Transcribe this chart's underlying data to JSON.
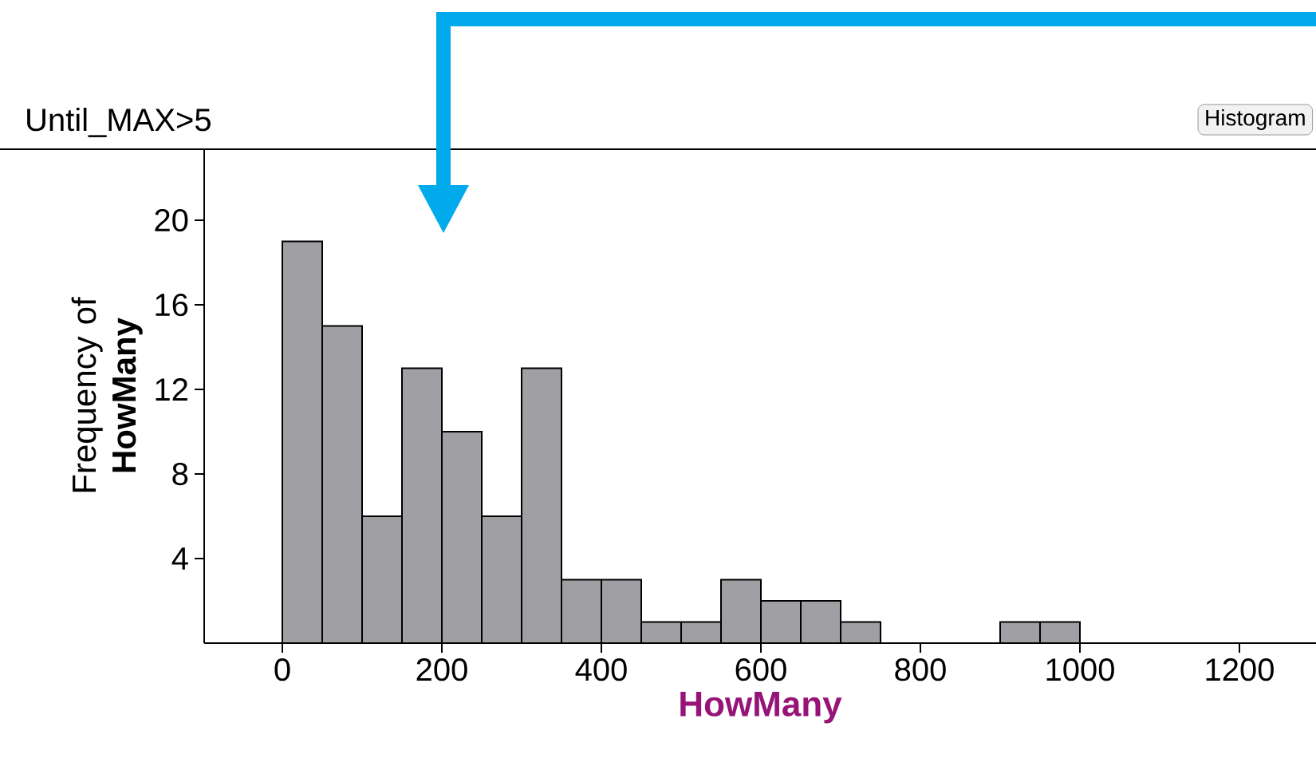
{
  "chart_data": {
    "type": "histogram",
    "title": "Until_MAX>5",
    "xlabel": "HowMany",
    "ylabel": "Frequency of **HowMany**",
    "bins": [
      0,
      50,
      100,
      150,
      200,
      250,
      300,
      350,
      400,
      450,
      500,
      550,
      600,
      650,
      700,
      750,
      800,
      850,
      900,
      950,
      1000
    ],
    "values": [
      19,
      15,
      6,
      13,
      10,
      6,
      13,
      3,
      3,
      1,
      1,
      3,
      2,
      2,
      1,
      0,
      0,
      0,
      1,
      1
    ],
    "color": "#a0a0a4",
    "xlim": [
      -98,
      1296
    ],
    "ylim": [
      0,
      23.4
    ],
    "xticks": [
      0,
      200,
      400,
      600,
      800,
      1000,
      1200
    ],
    "yticks": [
      4,
      8,
      12,
      16,
      20
    ],
    "annotations": [
      "Histogram"
    ]
  }
}
